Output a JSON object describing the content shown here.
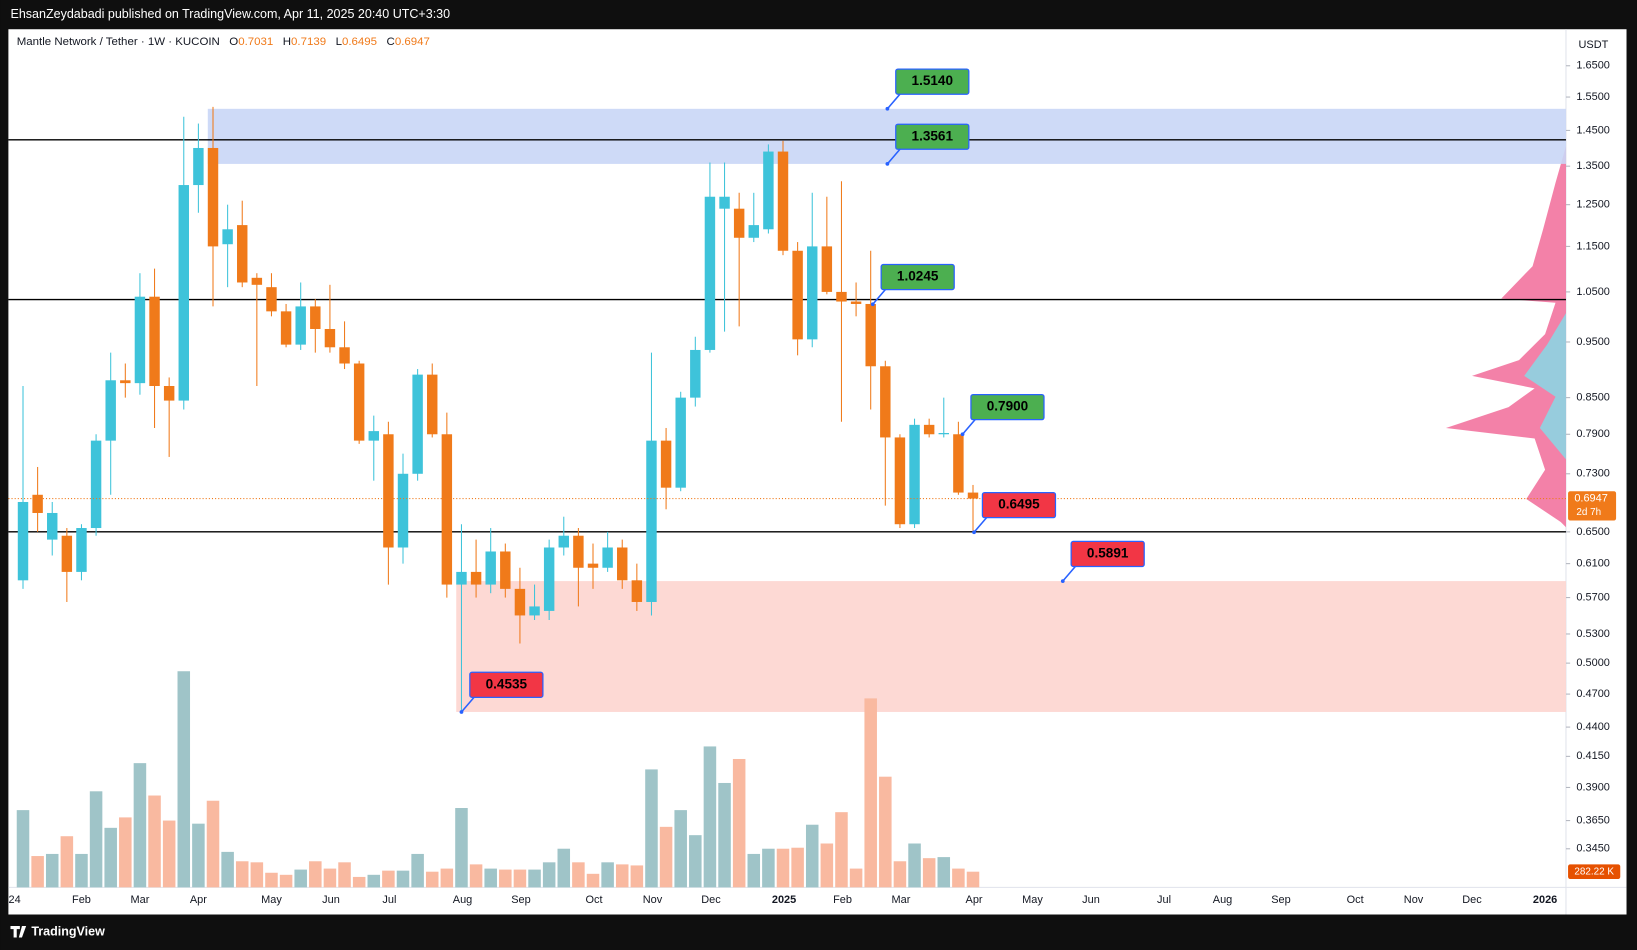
{
  "chart_data": {
    "type": "candlestick",
    "publisher_note": "EhsanZeydabadi published on TradingView.com, Apr 11, 2025 20:40 UTC+3:30",
    "title": "Mantle Network / Tether · 1W · KUCOIN",
    "ohlc_letters": [
      "O",
      "H",
      "L",
      "C"
    ],
    "currency": "USDT",
    "countdown": "2d 7h",
    "last_volume_label": "282.22 K",
    "brand": "TradingView",
    "log_scale": true,
    "grid": false,
    "up_color": "#3ec3da",
    "down_color": "#f07a1a",
    "volume_up_color": "#9fc4c8",
    "volume_down_color": "#f9b9a0",
    "ylim": [
      0.3194,
      1.775
    ],
    "yticks": [
      {
        "value": 0.345,
        "label": "0.3450"
      },
      {
        "value": 0.365,
        "label": "0.3650"
      },
      {
        "value": 0.39,
        "label": "0.3900"
      },
      {
        "value": 0.415,
        "label": "0.4150"
      },
      {
        "value": 0.44,
        "label": "0.4400"
      },
      {
        "value": 0.47,
        "label": "0.4700"
      },
      {
        "value": 0.5,
        "label": "0.5000"
      },
      {
        "value": 0.53,
        "label": "0.5300"
      },
      {
        "value": 0.57,
        "label": "0.5700"
      },
      {
        "value": 0.61,
        "label": "0.6100"
      },
      {
        "value": 0.65,
        "label": "0.6500"
      },
      {
        "value": 0.73,
        "label": "0.7300"
      },
      {
        "value": 0.79,
        "label": "0.7900"
      },
      {
        "value": 0.85,
        "label": "0.8500"
      },
      {
        "value": 0.95,
        "label": "0.9500"
      },
      {
        "value": 1.05,
        "label": "1.0500"
      },
      {
        "value": 1.15,
        "label": "1.1500"
      },
      {
        "value": 1.25,
        "label": "1.2500"
      },
      {
        "value": 1.35,
        "label": "1.3500"
      },
      {
        "value": 1.45,
        "label": "1.4500"
      },
      {
        "value": 1.55,
        "label": "1.5500"
      },
      {
        "value": 1.65,
        "label": "1.6500"
      }
    ],
    "x_labels": [
      "24",
      "Feb",
      "Mar",
      "Apr",
      "May",
      "Jun",
      "Jul",
      "Aug",
      "Sep",
      "Oct",
      "Nov",
      "Dec",
      "2025",
      "Feb",
      "Mar",
      "Apr",
      "May",
      "Jun",
      "Jul",
      "Aug",
      "Sep",
      "Oct",
      "Nov",
      "Dec",
      "2026"
    ],
    "levels": [
      1.423,
      1.034,
      0.65
    ],
    "annotations": [
      {
        "value": 1.514,
        "label": "1.5140",
        "color": "#4caf50"
      },
      {
        "value": 1.3561,
        "label": "1.3561",
        "color": "#4caf50"
      },
      {
        "value": 1.0245,
        "label": "1.0245",
        "color": "#4caf50"
      },
      {
        "value": 0.79,
        "label": "0.7900",
        "color": "#4caf50"
      },
      {
        "value": 0.6495,
        "label": "0.6495",
        "color": "#f23645"
      },
      {
        "value": 0.5891,
        "label": "0.5891",
        "color": "#f23645"
      },
      {
        "value": 0.4535,
        "label": "0.4535",
        "color": "#f23645"
      }
    ],
    "candles": [
      {
        "open": 0.59,
        "high": 0.87,
        "low": 0.58,
        "close": 0.69,
        "volume": 1391
      },
      {
        "open": 0.7,
        "high": 0.74,
        "low": 0.65,
        "close": 0.675,
        "volume": 564
      },
      {
        "open": 0.64,
        "high": 0.69,
        "low": 0.62,
        "close": 0.675,
        "volume": 602
      },
      {
        "open": 0.645,
        "high": 0.655,
        "low": 0.565,
        "close": 0.6,
        "volume": 921
      },
      {
        "open": 0.6,
        "high": 0.66,
        "low": 0.59,
        "close": 0.655,
        "volume": 602
      },
      {
        "open": 0.655,
        "high": 0.79,
        "low": 0.645,
        "close": 0.78,
        "volume": 1730
      },
      {
        "open": 0.78,
        "high": 0.93,
        "low": 0.7,
        "close": 0.88,
        "volume": 1072
      },
      {
        "open": 0.88,
        "high": 0.91,
        "low": 0.85,
        "close": 0.875,
        "volume": 1260
      },
      {
        "open": 0.875,
        "high": 1.09,
        "low": 0.855,
        "close": 1.04,
        "volume": 2237
      },
      {
        "open": 1.04,
        "high": 1.1,
        "low": 0.8,
        "close": 0.87,
        "volume": 1654
      },
      {
        "open": 0.87,
        "high": 0.885,
        "low": 0.755,
        "close": 0.845,
        "volume": 1203
      },
      {
        "open": 0.845,
        "high": 1.49,
        "low": 0.83,
        "close": 1.3,
        "volume": 3892
      },
      {
        "open": 1.3,
        "high": 1.47,
        "low": 1.23,
        "close": 1.4,
        "volume": 1147
      },
      {
        "open": 1.4,
        "high": 1.52,
        "low": 1.02,
        "close": 1.15,
        "volume": 1560
      },
      {
        "open": 1.155,
        "high": 1.25,
        "low": 1.06,
        "close": 1.19,
        "volume": 639
      },
      {
        "open": 1.2,
        "high": 1.26,
        "low": 1.06,
        "close": 1.07,
        "volume": 470
      },
      {
        "open": 1.08,
        "high": 1.09,
        "low": 0.87,
        "close": 1.065,
        "volume": 451
      },
      {
        "open": 1.06,
        "high": 1.09,
        "low": 1.0,
        "close": 1.01,
        "volume": 263
      },
      {
        "open": 1.01,
        "high": 1.025,
        "low": 0.94,
        "close": 0.945,
        "volume": 226
      },
      {
        "open": 0.945,
        "high": 1.07,
        "low": 0.935,
        "close": 1.02,
        "volume": 320
      },
      {
        "open": 1.02,
        "high": 1.035,
        "low": 0.93,
        "close": 0.975,
        "volume": 470
      },
      {
        "open": 0.975,
        "high": 1.065,
        "low": 0.93,
        "close": 0.94,
        "volume": 338
      },
      {
        "open": 0.94,
        "high": 0.99,
        "low": 0.9,
        "close": 0.91,
        "volume": 451
      },
      {
        "open": 0.91,
        "high": 0.915,
        "low": 0.775,
        "close": 0.78,
        "volume": 188
      },
      {
        "open": 0.78,
        "high": 0.82,
        "low": 0.72,
        "close": 0.795,
        "volume": 226
      },
      {
        "open": 0.79,
        "high": 0.81,
        "low": 0.585,
        "close": 0.63,
        "volume": 301
      },
      {
        "open": 0.63,
        "high": 0.76,
        "low": 0.61,
        "close": 0.73,
        "volume": 301
      },
      {
        "open": 0.73,
        "high": 0.9,
        "low": 0.72,
        "close": 0.89,
        "volume": 602
      },
      {
        "open": 0.89,
        "high": 0.91,
        "low": 0.785,
        "close": 0.79,
        "volume": 282
      },
      {
        "open": 0.79,
        "high": 0.825,
        "low": 0.57,
        "close": 0.585,
        "volume": 338
      },
      {
        "open": 0.585,
        "high": 0.66,
        "low": 0.4535,
        "close": 0.6,
        "volume": 1429
      },
      {
        "open": 0.6,
        "high": 0.64,
        "low": 0.57,
        "close": 0.585,
        "volume": 414
      },
      {
        "open": 0.585,
        "high": 0.655,
        "low": 0.575,
        "close": 0.625,
        "volume": 338
      },
      {
        "open": 0.625,
        "high": 0.635,
        "low": 0.57,
        "close": 0.58,
        "volume": 320
      },
      {
        "open": 0.58,
        "high": 0.605,
        "low": 0.52,
        "close": 0.55,
        "volume": 320
      },
      {
        "open": 0.55,
        "high": 0.585,
        "low": 0.545,
        "close": 0.56,
        "volume": 320
      },
      {
        "open": 0.555,
        "high": 0.64,
        "low": 0.545,
        "close": 0.63,
        "volume": 451
      },
      {
        "open": 0.63,
        "high": 0.67,
        "low": 0.62,
        "close": 0.645,
        "volume": 696
      },
      {
        "open": 0.645,
        "high": 0.655,
        "low": 0.56,
        "close": 0.605,
        "volume": 451
      },
      {
        "open": 0.61,
        "high": 0.635,
        "low": 0.58,
        "close": 0.605,
        "volume": 244
      },
      {
        "open": 0.605,
        "high": 0.65,
        "low": 0.6,
        "close": 0.63,
        "volume": 451
      },
      {
        "open": 0.63,
        "high": 0.64,
        "low": 0.58,
        "close": 0.59,
        "volume": 414
      },
      {
        "open": 0.59,
        "high": 0.61,
        "low": 0.555,
        "close": 0.565,
        "volume": 395
      },
      {
        "open": 0.565,
        "high": 0.93,
        "low": 0.55,
        "close": 0.78,
        "volume": 2124
      },
      {
        "open": 0.78,
        "high": 0.8,
        "low": 0.68,
        "close": 0.71,
        "volume": 1090
      },
      {
        "open": 0.71,
        "high": 0.86,
        "low": 0.705,
        "close": 0.85,
        "volume": 1391
      },
      {
        "open": 0.85,
        "high": 0.96,
        "low": 0.835,
        "close": 0.935,
        "volume": 940
      },
      {
        "open": 0.935,
        "high": 1.36,
        "low": 0.93,
        "close": 1.27,
        "volume": 2538
      },
      {
        "open": 1.24,
        "high": 1.36,
        "low": 0.97,
        "close": 1.27,
        "volume": 1880
      },
      {
        "open": 1.24,
        "high": 1.28,
        "low": 0.98,
        "close": 1.17,
        "volume": 2312
      },
      {
        "open": 1.17,
        "high": 1.28,
        "low": 1.16,
        "close": 1.2,
        "volume": 602
      },
      {
        "open": 1.19,
        "high": 1.41,
        "low": 1.18,
        "close": 1.39,
        "volume": 696
      },
      {
        "open": 1.39,
        "high": 1.42,
        "low": 1.13,
        "close": 1.14,
        "volume": 696
      },
      {
        "open": 1.14,
        "high": 1.16,
        "low": 0.925,
        "close": 0.955,
        "volume": 714
      },
      {
        "open": 0.955,
        "high": 1.28,
        "low": 0.94,
        "close": 1.15,
        "volume": 1128
      },
      {
        "open": 1.15,
        "high": 1.27,
        "low": 1.045,
        "close": 1.05,
        "volume": 790
      },
      {
        "open": 1.05,
        "high": 1.31,
        "low": 0.81,
        "close": 1.03,
        "volume": 1354
      },
      {
        "open": 1.03,
        "high": 1.07,
        "low": 1.0,
        "close": 1.025,
        "volume": 338
      },
      {
        "open": 1.025,
        "high": 1.14,
        "low": 0.83,
        "close": 0.905,
        "volume": 3403
      },
      {
        "open": 0.905,
        "high": 0.915,
        "low": 0.685,
        "close": 0.785,
        "volume": 1993
      },
      {
        "open": 0.785,
        "high": 0.79,
        "low": 0.655,
        "close": 0.66,
        "volume": 470
      },
      {
        "open": 0.66,
        "high": 0.815,
        "low": 0.655,
        "close": 0.805,
        "volume": 790
      },
      {
        "open": 0.805,
        "high": 0.815,
        "low": 0.785,
        "close": 0.79,
        "volume": 526
      },
      {
        "open": 0.79,
        "high": 0.85,
        "low": 0.785,
        "close": 0.792,
        "volume": 545
      },
      {
        "open": 0.79,
        "high": 0.81,
        "low": 0.7,
        "close": 0.7031,
        "volume": 338
      },
      {
        "open": 0.7031,
        "high": 0.7139,
        "low": 0.6495,
        "close": 0.6947,
        "volume": 282.22
      }
    ]
  }
}
